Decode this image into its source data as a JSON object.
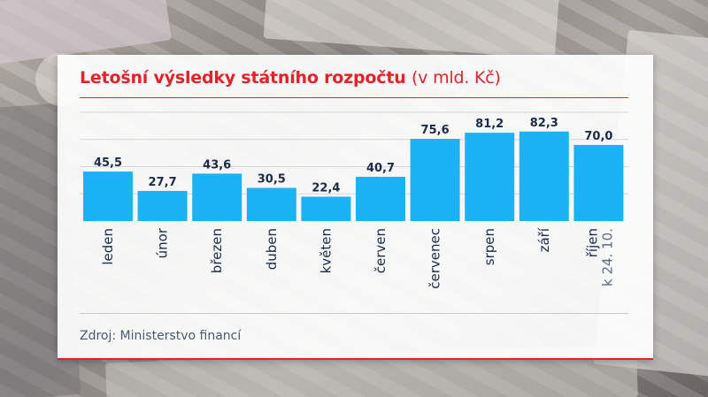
{
  "title_main": "Letošní výsledky státního rozpočtu",
  "title_unit": "(v mld. Kč)",
  "source": "Zdroj: Ministerstvo financí",
  "colors": {
    "bar": "#1cb3f5",
    "title": "#e3222b",
    "text": "#1b2a4a"
  },
  "chart_data": {
    "type": "bar",
    "title": "Letošní výsledky státního rozpočtu (v mld. Kč)",
    "categories": [
      "leden",
      "únor",
      "březen",
      "duben",
      "květen",
      "červen",
      "červenec",
      "srpen",
      "září",
      "říjen"
    ],
    "values": [
      45.5,
      27.7,
      43.6,
      30.5,
      22.4,
      40.7,
      75.6,
      81.2,
      82.3,
      70.0
    ],
    "value_labels": [
      "45,5",
      "27,7",
      "43,6",
      "30,5",
      "22,4",
      "40,7",
      "75,6",
      "81,2",
      "82,3",
      "70,0"
    ],
    "category_notes": {
      "říjen": "k 24. 10."
    },
    "ylim": [
      0,
      100
    ],
    "grid": true,
    "legend": "none"
  }
}
